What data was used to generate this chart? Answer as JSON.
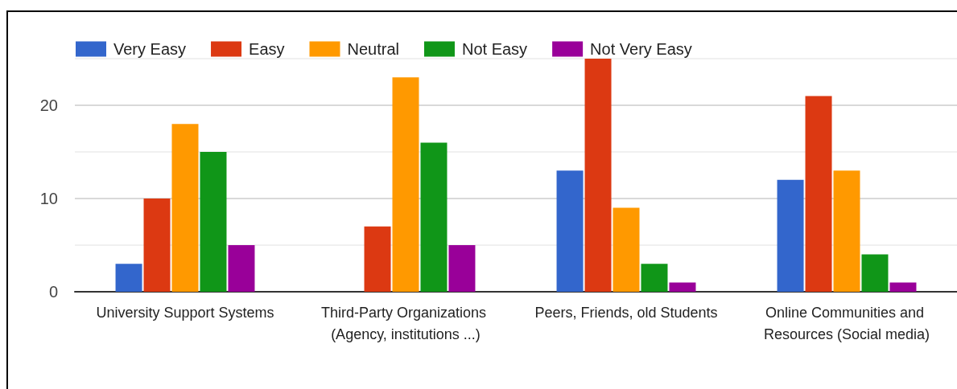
{
  "chart_data": {
    "type": "bar",
    "categories": [
      "University Support Systems",
      "Third-Party Organizations (Agency, institutions ...)",
      "Peers, Friends, old Students",
      "Online Communities and Resources (Social media)"
    ],
    "series": [
      {
        "name": "Very Easy",
        "color": "#3366cc",
        "values": [
          3,
          0,
          13,
          12
        ]
      },
      {
        "name": "Easy",
        "color": "#dc3912",
        "values": [
          10,
          7,
          25,
          21
        ]
      },
      {
        "name": "Neutral",
        "color": "#ff9900",
        "values": [
          18,
          23,
          9,
          13
        ]
      },
      {
        "name": "Not Easy",
        "color": "#109618",
        "values": [
          15,
          16,
          3,
          4
        ]
      },
      {
        "name": "Not Very Easy",
        "color": "#990099",
        "values": [
          5,
          5,
          1,
          1
        ]
      }
    ],
    "ylim": [
      0,
      25
    ],
    "yticks": [
      0,
      {
        "value": 5,
        "label": null
      },
      10,
      {
        "value": 15,
        "label": null
      },
      20,
      {
        "value": 25,
        "label": null
      }
    ],
    "grid": "y",
    "legend": "top left"
  }
}
